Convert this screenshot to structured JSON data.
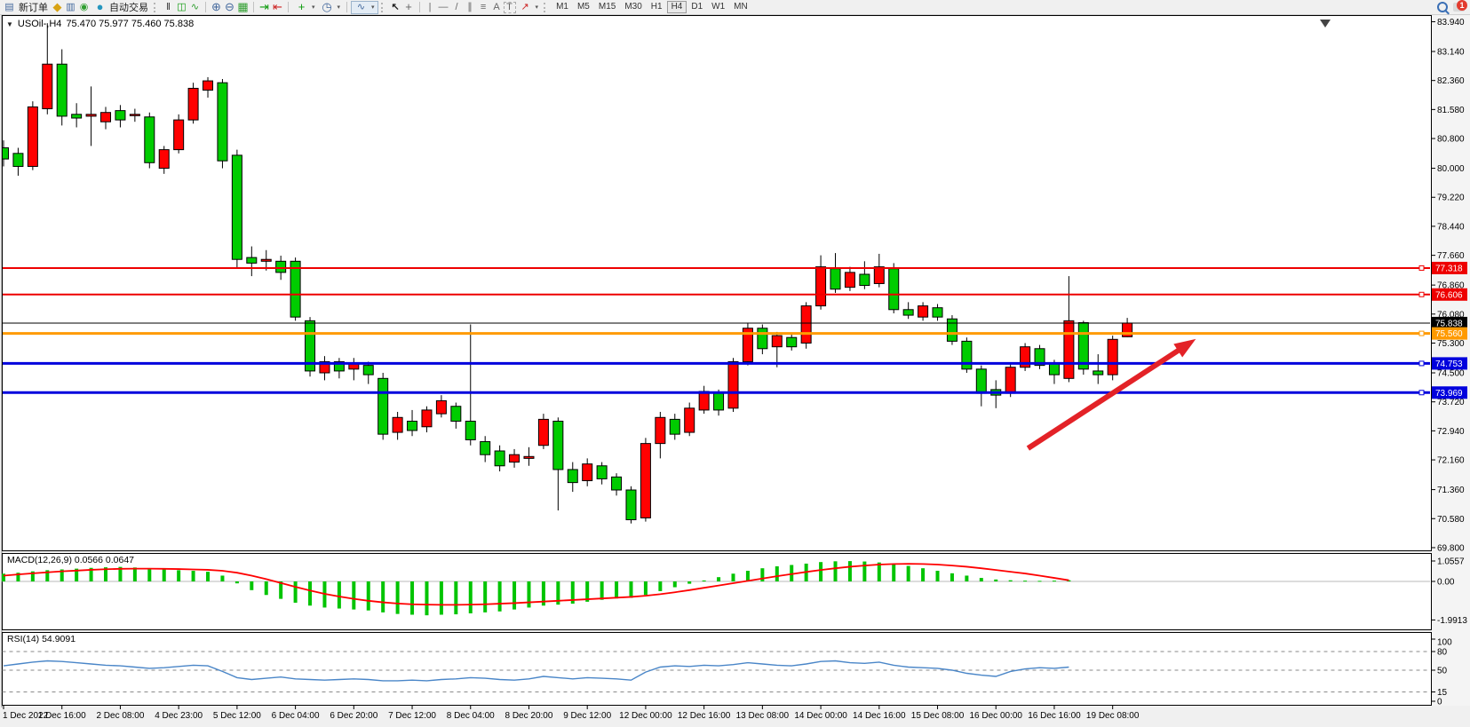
{
  "toolbar": {
    "new_order_label": "新订单",
    "auto_trading_label": "自动交易",
    "timeframes": [
      "M1",
      "M5",
      "M15",
      "M30",
      "H1",
      "H4",
      "D1",
      "W1",
      "MN"
    ],
    "active_timeframe": "H4",
    "notification_count": "1",
    "icons": {
      "symbol_dropdown": "▼",
      "new_order": "▤",
      "profiles": "◆",
      "data_window": "▥",
      "signal": "◉",
      "auto_trading": "●",
      "bar_chart": "‖",
      "candle_chart": "◫",
      "line_chart": "∿",
      "zoom_in": "⊕",
      "zoom_out": "⊖",
      "tile_windows": "▦",
      "auto_scroll": "⇥",
      "chart_shift": "⇤",
      "add_indicator": "+",
      "periods": "◷",
      "templates": "∿",
      "cursor": "↖",
      "crosshair": "+",
      "vertical_line": "|",
      "horizontal_line": "—",
      "trend_line": "/",
      "channel": "∥",
      "fibonacci": "≡",
      "text": "A",
      "text_label": "T",
      "arrows": "↗",
      "dropdown": "▾"
    }
  },
  "chart": {
    "symbol_title": "USOil-,H4",
    "ohlc_text": "75.470 75.977 75.460 75.838",
    "macd_label": "MACD(12,26,9) 0.0566 0.0647",
    "rsi_label": "RSI(14) 54.9091"
  },
  "chart_data": [
    {
      "type": "candlestick",
      "symbol": "USOil-",
      "timeframe": "H4",
      "current_bar": {
        "open": 75.47,
        "high": 75.977,
        "low": 75.46,
        "close": 75.838
      },
      "bull_color": "#ff0000",
      "bear_color": "#00cc00",
      "wick_color": "#000000",
      "price_ticks": [
        83.94,
        83.14,
        82.36,
        81.58,
        80.8,
        80.0,
        79.22,
        78.44,
        77.66,
        76.86,
        76.08,
        75.3,
        74.5,
        73.72,
        72.94,
        72.16,
        71.36,
        70.58,
        69.8
      ],
      "time_labels": [
        "1 Dec 2022",
        "1 Dec 16:00",
        "2 Dec 08:00",
        "4 Dec 23:00",
        "5 Dec 12:00",
        "6 Dec 04:00",
        "6 Dec 20:00",
        "7 Dec 12:00",
        "8 Dec 04:00",
        "8 Dec 20:00",
        "9 Dec 12:00",
        "12 Dec 00:00",
        "12 Dec 16:00",
        "13 Dec 08:00",
        "14 Dec 00:00",
        "14 Dec 16:00",
        "15 Dec 08:00",
        "16 Dec 00:00",
        "16 Dec 16:00",
        "19 Dec 08:00"
      ],
      "candles_per_time_label": 4,
      "candles": [
        [
          80.55,
          80.75,
          80.05,
          80.25
        ],
        [
          80.4,
          80.55,
          79.8,
          80.05
        ],
        [
          80.05,
          81.8,
          79.95,
          81.65
        ],
        [
          81.6,
          83.9,
          81.45,
          82.8
        ],
        [
          82.8,
          83.2,
          81.15,
          81.4
        ],
        [
          81.45,
          81.75,
          81.1,
          81.35
        ],
        [
          81.4,
          82.2,
          80.6,
          81.45
        ],
        [
          81.25,
          81.65,
          81.05,
          81.5
        ],
        [
          81.55,
          81.7,
          81.1,
          81.3
        ],
        [
          81.42,
          81.6,
          81.25,
          81.45
        ],
        [
          81.38,
          81.5,
          80.0,
          80.15
        ],
        [
          80.0,
          80.6,
          79.85,
          80.5
        ],
        [
          80.5,
          81.45,
          80.4,
          81.3
        ],
        [
          81.3,
          82.3,
          81.2,
          82.15
        ],
        [
          82.1,
          82.45,
          81.9,
          82.35
        ],
        [
          82.3,
          82.4,
          80.0,
          80.2
        ],
        [
          80.35,
          80.5,
          77.3,
          77.55
        ],
        [
          77.6,
          77.9,
          77.1,
          77.45
        ],
        [
          77.5,
          77.8,
          77.25,
          77.55
        ],
        [
          77.5,
          77.65,
          77.0,
          77.2
        ],
        [
          77.5,
          77.6,
          75.9,
          76.0
        ],
        [
          75.9,
          76.0,
          74.4,
          74.55
        ],
        [
          74.5,
          74.95,
          74.3,
          74.8
        ],
        [
          74.8,
          74.9,
          74.35,
          74.55
        ],
        [
          74.6,
          74.9,
          74.3,
          74.75
        ],
        [
          74.7,
          74.8,
          74.2,
          74.45
        ],
        [
          74.35,
          74.5,
          72.7,
          72.85
        ],
        [
          72.9,
          73.45,
          72.7,
          73.3
        ],
        [
          73.2,
          73.5,
          72.8,
          72.95
        ],
        [
          73.05,
          73.6,
          72.9,
          73.5
        ],
        [
          73.4,
          73.9,
          73.3,
          73.75
        ],
        [
          73.6,
          73.7,
          73.0,
          73.2
        ],
        [
          73.2,
          75.8,
          72.55,
          72.7
        ],
        [
          72.65,
          72.8,
          72.1,
          72.3
        ],
        [
          72.4,
          72.55,
          71.85,
          72.0
        ],
        [
          72.1,
          72.45,
          71.95,
          72.3
        ],
        [
          72.2,
          72.5,
          72.0,
          72.25
        ],
        [
          72.55,
          73.4,
          72.45,
          73.25
        ],
        [
          73.2,
          73.3,
          70.8,
          71.9
        ],
        [
          71.9,
          72.1,
          71.3,
          71.55
        ],
        [
          71.6,
          72.2,
          71.45,
          72.05
        ],
        [
          72.0,
          72.1,
          71.5,
          71.65
        ],
        [
          71.7,
          71.8,
          71.2,
          71.35
        ],
        [
          71.35,
          71.45,
          70.45,
          70.55
        ],
        [
          70.6,
          72.75,
          70.5,
          72.6
        ],
        [
          72.6,
          73.45,
          72.2,
          73.3
        ],
        [
          73.25,
          73.4,
          72.7,
          72.85
        ],
        [
          72.9,
          73.7,
          72.8,
          73.55
        ],
        [
          73.5,
          74.15,
          73.4,
          74.0
        ],
        [
          73.95,
          74.05,
          73.35,
          73.5
        ],
        [
          73.55,
          74.9,
          73.45,
          74.8
        ],
        [
          74.8,
          75.85,
          74.7,
          75.7
        ],
        [
          75.7,
          75.8,
          75.0,
          75.15
        ],
        [
          75.2,
          75.6,
          74.65,
          75.5
        ],
        [
          75.45,
          75.55,
          75.1,
          75.2
        ],
        [
          75.3,
          76.4,
          75.15,
          76.3
        ],
        [
          76.3,
          77.66,
          76.2,
          77.35
        ],
        [
          77.3,
          77.72,
          76.65,
          76.75
        ],
        [
          76.8,
          77.35,
          76.7,
          77.2
        ],
        [
          77.15,
          77.5,
          76.75,
          76.85
        ],
        [
          76.9,
          77.7,
          76.8,
          77.35
        ],
        [
          77.3,
          77.45,
          76.1,
          76.2
        ],
        [
          76.2,
          76.4,
          75.95,
          76.05
        ],
        [
          76.0,
          76.4,
          75.9,
          76.3
        ],
        [
          76.25,
          76.35,
          75.9,
          76.0
        ],
        [
          75.95,
          76.05,
          75.25,
          75.35
        ],
        [
          75.35,
          75.45,
          74.5,
          74.6
        ],
        [
          74.6,
          74.7,
          73.6,
          73.95
        ],
        [
          74.05,
          74.3,
          73.55,
          73.9
        ],
        [
          73.95,
          74.75,
          73.85,
          74.65
        ],
        [
          74.65,
          75.3,
          74.55,
          75.2
        ],
        [
          75.15,
          75.25,
          74.6,
          74.7
        ],
        [
          74.75,
          74.85,
          74.2,
          74.45
        ],
        [
          74.35,
          77.1,
          74.25,
          75.9
        ],
        [
          75.85,
          75.9,
          74.45,
          74.6
        ],
        [
          74.55,
          75.0,
          74.2,
          74.45
        ],
        [
          74.45,
          75.5,
          74.3,
          75.4
        ],
        [
          75.47,
          75.977,
          75.46,
          75.838
        ]
      ],
      "hlines": [
        {
          "price": 77.318,
          "color": "#ee0000",
          "width": 2,
          "label": "77.318"
        },
        {
          "price": 76.606,
          "color": "#ee0000",
          "width": 2,
          "label": "76.606"
        },
        {
          "price": 75.838,
          "color": "#000000",
          "width": 1,
          "label": "75.838",
          "role": "current-price"
        },
        {
          "price": 75.56,
          "color": "#ff9a00",
          "width": 3,
          "label": "75.560"
        },
        {
          "price": 74.753,
          "color": "#0000dd",
          "width": 3,
          "label": "74.753"
        },
        {
          "price": 73.969,
          "color": "#0000dd",
          "width": 3,
          "label": "73.969"
        }
      ],
      "arrow": {
        "from_bar": 70.2,
        "from_price": 72.47,
        "to_bar": 81.7,
        "to_price": 75.41,
        "color": "#e32227"
      },
      "shift_marker_x": 1492
    },
    {
      "type": "bar",
      "name": "MACD",
      "params": "(12,26,9)",
      "main_value": 0.0566,
      "signal_value": 0.0647,
      "hist_color": "#00c400",
      "signal_color": "#ff0000",
      "scale_ticks": [
        [
          "1.0557",
          1.0557
        ],
        [
          "0.00",
          0
        ],
        [
          "-1.9913",
          -1.9913
        ]
      ],
      "ylim": [
        -1.9913,
        1.0557
      ],
      "histogram": [
        0.4,
        0.45,
        0.52,
        0.58,
        0.62,
        0.66,
        0.7,
        0.73,
        0.75,
        0.72,
        0.68,
        0.62,
        0.58,
        0.55,
        0.5,
        0.3,
        -0.1,
        -0.45,
        -0.7,
        -0.9,
        -1.1,
        -1.25,
        -1.35,
        -1.4,
        -1.45,
        -1.5,
        -1.6,
        -1.68,
        -1.72,
        -1.75,
        -1.72,
        -1.7,
        -1.65,
        -1.6,
        -1.55,
        -1.45,
        -1.35,
        -1.25,
        -1.2,
        -1.15,
        -1.05,
        -0.95,
        -0.88,
        -0.85,
        -0.7,
        -0.5,
        -0.3,
        -0.12,
        0.05,
        0.22,
        0.4,
        0.55,
        0.68,
        0.78,
        0.85,
        0.92,
        1.0,
        1.04,
        1.05,
        1.03,
        0.98,
        0.9,
        0.8,
        0.68,
        0.55,
        0.42,
        0.3,
        0.18,
        0.1,
        0.06,
        0.04,
        0.03,
        0.04,
        0.06
      ],
      "signal": [
        0.3,
        0.36,
        0.42,
        0.47,
        0.52,
        0.56,
        0.6,
        0.63,
        0.65,
        0.66,
        0.66,
        0.65,
        0.64,
        0.62,
        0.6,
        0.55,
        0.45,
        0.3,
        0.12,
        -0.08,
        -0.28,
        -0.47,
        -0.64,
        -0.78,
        -0.9,
        -1.0,
        -1.08,
        -1.14,
        -1.18,
        -1.2,
        -1.21,
        -1.21,
        -1.2,
        -1.18,
        -1.15,
        -1.12,
        -1.08,
        -1.04,
        -1.0,
        -0.96,
        -0.92,
        -0.88,
        -0.84,
        -0.8,
        -0.74,
        -0.66,
        -0.56,
        -0.45,
        -0.33,
        -0.21,
        -0.09,
        0.03,
        0.15,
        0.27,
        0.38,
        0.49,
        0.59,
        0.68,
        0.76,
        0.82,
        0.87,
        0.9,
        0.91,
        0.9,
        0.87,
        0.82,
        0.76,
        0.68,
        0.59,
        0.5,
        0.41,
        0.3,
        0.18,
        0.06
      ]
    },
    {
      "type": "line",
      "name": "RSI",
      "params": "(14)",
      "current_value": 54.9091,
      "line_color": "#4a86c8",
      "scale_ticks": [
        [
          "100",
          100
        ],
        [
          "80",
          80
        ],
        [
          "50",
          50
        ],
        [
          "15",
          15
        ],
        [
          "0",
          0
        ]
      ],
      "dashed_levels": [
        80,
        50,
        15
      ],
      "ylim": [
        0,
        100
      ],
      "values": [
        57,
        60,
        63,
        65,
        64,
        62,
        60,
        58,
        57,
        55,
        53,
        54,
        56,
        58,
        57,
        48,
        38,
        35,
        37,
        39,
        36,
        35,
        34,
        35,
        36,
        35,
        33,
        33,
        34,
        33,
        35,
        36,
        38,
        37,
        35,
        34,
        36,
        40,
        38,
        36,
        38,
        37,
        36,
        34,
        47,
        55,
        57,
        56,
        58,
        57,
        59,
        62,
        60,
        58,
        57,
        60,
        64,
        65,
        62,
        61,
        63,
        58,
        55,
        54,
        53,
        50,
        45,
        42,
        40,
        48,
        52,
        54,
        53,
        55
      ]
    }
  ]
}
